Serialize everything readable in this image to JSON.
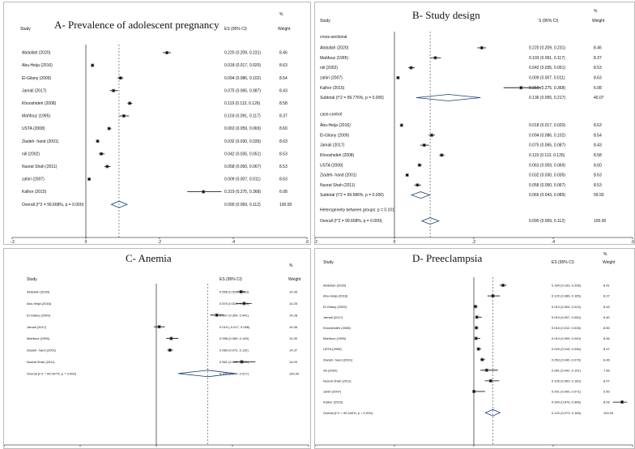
{
  "chart_data": [
    {
      "type": "forest",
      "title": "A- Prevalence of adolescent pregnancy",
      "headers": {
        "study": "Study",
        "es": "ES (95% CI)",
        "pct": "%",
        "weight": "Weight"
      },
      "xlim": [
        -0.2,
        0.6
      ],
      "ticks": [
        {
          "v": -0.2,
          "label": "-.2"
        },
        {
          "v": 0,
          "label": "0"
        },
        {
          "v": 0.2,
          "label": ".2"
        },
        {
          "v": 0.4,
          "label": ".4"
        },
        {
          "v": 0.6,
          "label": ".6"
        }
      ],
      "ref_line": 0.09,
      "studies": [
        {
          "name": "Abdullah (2020)",
          "es": 0.22,
          "lo": 0.209,
          "hi": 0.231,
          "es_text": "0.220 (0.209, 0.231)",
          "weight": "8.46"
        },
        {
          "name": "Abu-Heija (2016)",
          "es": 0.018,
          "lo": 0.017,
          "hi": 0.02,
          "es_text": "0.018 (0.017, 0.020)",
          "weight": "8.63"
        },
        {
          "name": "El-Gilany (2009)",
          "es": 0.094,
          "lo": 0.086,
          "hi": 0.102,
          "es_text": "0.094 (0.086, 0.102)",
          "weight": "8.54"
        },
        {
          "name": "Jamali (2017)",
          "es": 0.075,
          "lo": 0.065,
          "hi": 0.087,
          "es_text": "0.075 (0.065, 0.087)",
          "weight": "8.43"
        },
        {
          "name": "Khooshideh (2008)",
          "es": 0.119,
          "lo": 0.113,
          "hi": 0.126,
          "es_text": "0.119 (0.113, 0.126)",
          "weight": "8.58"
        },
        {
          "name": "Mahfouz (1995)",
          "es": 0.103,
          "lo": 0.091,
          "hi": 0.117,
          "es_text": "0.103 (0.091, 0.117)",
          "weight": "8.37"
        },
        {
          "name": "USTA (2008)",
          "es": 0.063,
          "lo": 0.059,
          "hi": 0.069,
          "es_text": "0.063 (0.059, 0.069)",
          "weight": "8.60"
        },
        {
          "name": "Ziadeh- hand (2001)",
          "es": 0.032,
          "lo": 0.03,
          "hi": 0.035,
          "es_text": "0.032 (0.030, 0.035)",
          "weight": "8.63"
        },
        {
          "name": "nili (2002)",
          "es": 0.042,
          "lo": 0.035,
          "hi": 0.051,
          "es_text": "0.042 (0.035, 0.051)",
          "weight": "8.53"
        },
        {
          "name": "Nusrat Shah (2011)",
          "es": 0.058,
          "lo": 0.05,
          "hi": 0.067,
          "es_text": "0.058 (0.050, 0.067)",
          "weight": "8.53"
        },
        {
          "name": "zahiri (2007)",
          "es": 0.009,
          "lo": 0.007,
          "hi": 0.011,
          "es_text": "0.009 (0.007, 0.011)",
          "weight": "8.63"
        },
        {
          "name": "Kalhor (2015)",
          "es": 0.319,
          "lo": 0.275,
          "hi": 0.368,
          "es_text": "0.319 (0.275, 0.368)",
          "weight": "6.08"
        }
      ],
      "overall": {
        "label": "Overall (I^2 = 99.668%, p = 0.000)",
        "es": 0.09,
        "lo": 0.069,
        "hi": 0.112,
        "es_text": "0.090 (0.069, 0.112)",
        "weight": "100.00"
      }
    },
    {
      "type": "forest",
      "title": "B- Study design",
      "headers": {
        "study": "Study",
        "es": "S (95% CI)",
        "pct": "%",
        "weight": "Weight"
      },
      "xlim": [
        -0.2,
        0.6
      ],
      "ticks": [
        {
          "v": -0.2,
          "label": "-.2"
        },
        {
          "v": 0,
          "label": "0"
        },
        {
          "v": 0.2,
          "label": ".2"
        },
        {
          "v": 0.4,
          "label": ".4"
        },
        {
          "v": 0.6,
          "label": ".6"
        }
      ],
      "ref_line": 0.09,
      "groups": [
        {
          "label": "cross-sectional",
          "studies": [
            {
              "name": "Abdullah (2020)",
              "es": 0.22,
              "lo": 0.209,
              "hi": 0.231,
              "es_text": "0.220 (0.209, 0.231)",
              "weight": "8.46"
            },
            {
              "name": "Mahfouz (1995)",
              "es": 0.103,
              "lo": 0.091,
              "hi": 0.117,
              "es_text": "0.103 (0.091, 0.117)",
              "weight": "8.37"
            },
            {
              "name": "nili (2002)",
              "es": 0.042,
              "lo": 0.035,
              "hi": 0.051,
              "es_text": "0.042 (0.035, 0.051)",
              "weight": "8.53"
            },
            {
              "name": "zahiri (2007)",
              "es": 0.009,
              "lo": 0.007,
              "hi": 0.011,
              "es_text": "0.009 (0.007, 0.011)",
              "weight": "8.63"
            },
            {
              "name": "Kalhor (2015)",
              "es": 0.319,
              "lo": 0.275,
              "hi": 0.368,
              "es_text": "0.319 (0.275, 0.368)",
              "weight": "6.08"
            }
          ],
          "subtotal": {
            "label": "Subtotal  (I^2 = 99.776%, p = 0.000)",
            "es": 0.136,
            "lo": 0.055,
            "hi": 0.217,
            "es_text": "0.136 (0.055, 0.217)",
            "weight": "40.07"
          }
        },
        {
          "label": "case-control",
          "studies": [
            {
              "name": "Abu-Heija (2016)",
              "es": 0.018,
              "lo": 0.017,
              "hi": 0.02,
              "es_text": "0.018 (0.017, 0.020)",
              "weight": "8.63"
            },
            {
              "name": "El-Gilany (2009)",
              "es": 0.094,
              "lo": 0.086,
              "hi": 0.102,
              "es_text": "0.094 (0.086, 0.102)",
              "weight": "8.54"
            },
            {
              "name": "Jamali (2017)",
              "es": 0.075,
              "lo": 0.065,
              "hi": 0.087,
              "es_text": "0.075 (0.065, 0.087)",
              "weight": "8.43"
            },
            {
              "name": "Khooshideh (2008)",
              "es": 0.119,
              "lo": 0.113,
              "hi": 0.126,
              "es_text": "0.119 (0.113, 0.126)",
              "weight": "8.58"
            },
            {
              "name": "USTA (2008)",
              "es": 0.063,
              "lo": 0.059,
              "hi": 0.069,
              "es_text": "0.063 (0.059, 0.069)",
              "weight": "8.60"
            },
            {
              "name": "Ziadeh- hand (2001)",
              "es": 0.032,
              "lo": 0.03,
              "hi": 0.035,
              "es_text": "0.032 (0.030, 0.035)",
              "weight": "8.63"
            },
            {
              "name": "Nusrat Shah (2011)",
              "es": 0.058,
              "lo": 0.05,
              "hi": 0.067,
              "es_text": "0.058 (0.050, 0.067)",
              "weight": "8.53"
            }
          ],
          "subtotal": {
            "label": "Subtotal  (I^2 = 99.586%, p = 0.000)",
            "es": 0.066,
            "lo": 0.043,
            "hi": 0.089,
            "es_text": "0.066 (0.043, 0.089)",
            "weight": "59.93"
          }
        }
      ],
      "heterogeneity": "Heterogeneity between groups: p = 0.101",
      "overall": {
        "label": "Overall  (I^2 = 99.668%, p = 0.000);",
        "es": 0.09,
        "lo": 0.069,
        "hi": 0.112,
        "es_text": "0.090 (0.069, 0.112)",
        "weight": "100.00"
      }
    },
    {
      "type": "forest",
      "title": "C- Anemia",
      "headers": {
        "study": "Study",
        "es": "ES (95% CI)",
        "pct": "%",
        "weight": "Weight"
      },
      "xlim": [
        -1,
        1
      ],
      "ticks": [
        {
          "v": -1,
          "label": "-1"
        },
        {
          "v": -0.5,
          "label": "-.5"
        },
        {
          "v": 0,
          "label": "0"
        },
        {
          "v": 0.5,
          "label": ".5"
        },
        {
          "v": 1,
          "label": "1"
        }
      ],
      "ref_line": 0.338,
      "studies": [
        {
          "name": "Abdullah (2020)",
          "es": 0.556,
          "lo": 0.529,
          "hi": 0.583,
          "es_text": "0.556 (0.529, 0.583)",
          "weight": "14.35"
        },
        {
          "name": "Abu-Heija (2016)",
          "es": 0.576,
          "lo": 0.525,
          "hi": 0.626,
          "es_text": "0.576 (0.525, 0.626)",
          "weight": "14.25"
        },
        {
          "name": "El-Gilany (2009)",
          "es": 0.397,
          "lo": 0.354,
          "hi": 0.441,
          "es_text": "0.397 (0.354, 0.441)",
          "weight": "14.28"
        },
        {
          "name": "Jamali (2017)",
          "es": 0.019,
          "lo": -0.017,
          "hi": 0.056,
          "es_text": "0.019 (-0.017, 0.056)",
          "weight": "14.36"
        },
        {
          "name": "Mahfouz (1995)",
          "es": 0.098,
          "lo": 0.065,
          "hi": 0.145,
          "es_text": "0.098 (0.065, 0.145)",
          "weight": "14.30"
        },
        {
          "name": "Ziadeh- hand (2001)",
          "es": 0.089,
          "lo": 0.072,
          "hi": 0.11,
          "es_text": "0.089 (0.072, 0.110)",
          "weight": "14.37"
        },
        {
          "name": "Nusrat Shah (2011)",
          "es": 0.561,
          "lo": 0.508,
          "hi": 0.651,
          "es_text": "0.561 (0.508, 0.651)",
          "weight": "14.09"
        }
      ],
      "overall": {
        "label": "Overall  (I^2 = 99.097%, p = 0.000)",
        "es": 0.338,
        "lo": 0.144,
        "hi": 0.517,
        "es_text": "0.338 (0.144, 0.517)",
        "weight": "100.00"
      }
    },
    {
      "type": "forest",
      "title": "D- Preeclampsia",
      "headers": {
        "study": "Study",
        "es": "ES (95% CI)",
        "pct": "%",
        "weight": "Weight"
      },
      "xlim": [
        -1,
        1
      ],
      "ticks": [
        {
          "v": -1,
          "label": "-1"
        },
        {
          "v": -0.5,
          "label": "-.5"
        },
        {
          "v": 0,
          "label": "0"
        },
        {
          "v": 0.5,
          "label": ".5"
        },
        {
          "v": 1,
          "label": "1"
        }
      ],
      "ref_line": 0.12,
      "studies": [
        {
          "name": "Abdullah (2020)",
          "es": 0.184,
          "lo": 0.163,
          "hi": 0.206,
          "es_text": "0.184 (0.163, 0.206)",
          "weight": "8.41"
        },
        {
          "name": "Abu-Heija (2016)",
          "es": 0.12,
          "lo": 0.086,
          "hi": 0.165,
          "es_text": "0.120 (0.086, 0.165)",
          "weight": "8.27"
        },
        {
          "name": "El-Gilany (2009)",
          "es": 0.01,
          "lo": 0.004,
          "hi": 0.024,
          "es_text": "0.010 (0.004, 0.024)",
          "weight": "8.49"
        },
        {
          "name": "Jamali (2017)",
          "es": 0.019,
          "lo": 0.007,
          "hi": 0.05,
          "es_text": "0.019 (0.007, 0.050)",
          "weight": "8.40"
        },
        {
          "name": "Khooshideh (2008)",
          "es": 0.016,
          "lo": 0.012,
          "hi": 0.028,
          "es_text": "0.016 (0.012, 0.028)",
          "weight": "8.50"
        },
        {
          "name": "Mahfouz (1995)",
          "es": 0.014,
          "lo": 0.005,
          "hi": 0.04,
          "es_text": "0.014 (0.005, 0.040)",
          "weight": "8.46"
        },
        {
          "name": "USTA (2008)",
          "es": 0.029,
          "lo": 0.018,
          "hi": 0.046,
          "es_text": "0.029 (0.018, 0.046)",
          "weight": "8.47"
        },
        {
          "name": "Ziadeh- hand (2001)",
          "es": 0.053,
          "lo": 0.04,
          "hi": 0.07,
          "es_text": "0.053 (0.040, 0.070)",
          "weight": "8.46"
        },
        {
          "name": "nili (2002)",
          "es": 0.081,
          "lo": 0.042,
          "hi": 0.151,
          "es_text": "0.081 (0.042, 0.151)",
          "weight": "7.89"
        },
        {
          "name": "Nusrat Shah (2011)",
          "es": 0.106,
          "lo": 0.069,
          "hi": 0.16,
          "es_text": "0.106 (0.069, 0.160)",
          "weight": "8.07"
        },
        {
          "name": "zahiri (2007)",
          "es": 0.001,
          "lo": 0.0,
          "hi": 0.071,
          "es_text": "0.001 (0.000, 0.071)",
          "weight": "9.50"
        },
        {
          "name": "Kalhor (2015)",
          "es": 0.934,
          "lo": 0.876,
          "hi": 0.966,
          "es_text": "0.934 (0.876, 0.966)",
          "weight": "8.09"
        }
      ],
      "overall": {
        "label": "Overall  (I^2 = 99.440%, p = 0.000)",
        "es": 0.12,
        "lo": 0.073,
        "hi": 0.165,
        "es_text": "0.120 (0.073, 0.165)",
        "weight": "100.00"
      }
    }
  ]
}
